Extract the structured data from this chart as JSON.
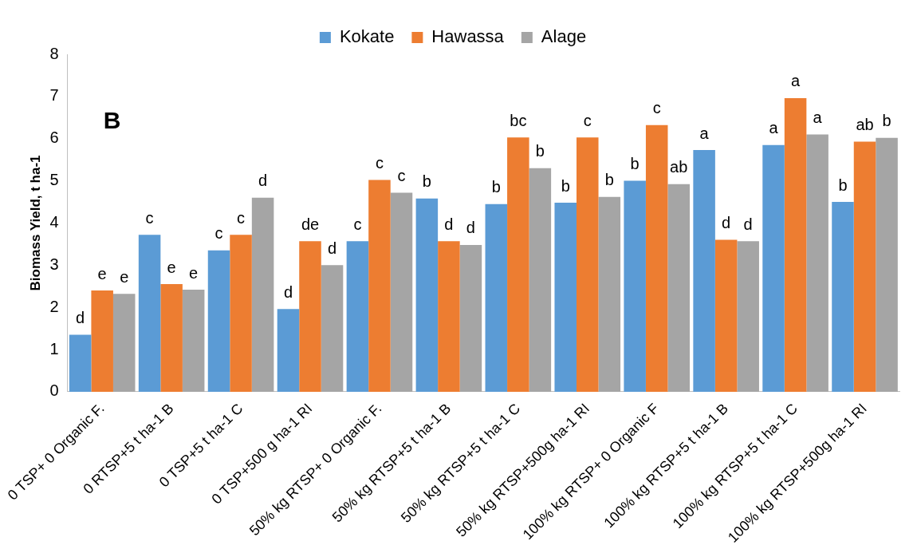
{
  "chart_data": {
    "type": "bar",
    "ylabel": "Biomass Yield, t ha-1",
    "annotations": [
      "B"
    ],
    "categories": [
      "0 TSP+ 0 Organic F.",
      "0 RTSP+5 t ha-1 B",
      "0 TSP+5 t ha-1 C",
      "0 TSP+500 g ha-1 RI",
      "50% kg RTSP+ 0 Organic F.",
      "50% kg RTSP+5 t ha-1 B",
      "50% kg RTSP+5 t ha-1 C",
      "50% kg RTSP+500g ha-1 RI",
      "100% kg RTSP+ 0 Organic F",
      "100% kg RTSP+5 t ha-1 B",
      "100% kg RTSP+5 t ha-1 C",
      "100% kg RTSP+500g ha-1 RI"
    ],
    "series": [
      {
        "name": "Kokate",
        "color": "#5b9bd5",
        "values": [
          1.35,
          3.72,
          3.35,
          1.96,
          3.57,
          4.58,
          4.45,
          4.48,
          5.0,
          5.73,
          5.85,
          4.5
        ],
        "value_labels": [
          "d",
          "c",
          "c",
          "d",
          "c",
          "b",
          "b",
          "b",
          "b",
          "a",
          "a",
          "b"
        ]
      },
      {
        "name": "Hawassa",
        "color": "#ed7d31",
        "values": [
          2.4,
          2.55,
          3.72,
          3.57,
          5.02,
          3.57,
          6.03,
          6.03,
          6.32,
          3.6,
          6.96,
          5.93
        ],
        "value_labels": [
          "e",
          "e",
          "c",
          "de",
          "c",
          "d",
          "bc",
          "c",
          "c",
          "d",
          "a",
          "ab"
        ]
      },
      {
        "name": "Alage",
        "color": "#a5a5a5",
        "values": [
          2.32,
          2.42,
          4.6,
          3.0,
          4.72,
          3.48,
          5.3,
          4.62,
          4.92,
          3.57,
          6.1,
          6.02
        ],
        "value_labels": [
          "e",
          "e",
          "d",
          "d",
          "c",
          "d",
          "b",
          "b",
          "ab",
          "d",
          "a",
          "b"
        ]
      }
    ],
    "ylim": [
      0,
      8
    ],
    "yticks": [
      0,
      1,
      2,
      3,
      4,
      5,
      6,
      7,
      8
    ],
    "grid": false,
    "legend": "top"
  }
}
